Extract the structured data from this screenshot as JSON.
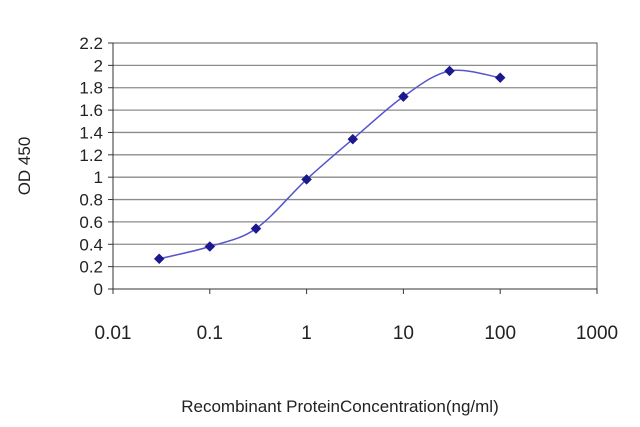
{
  "chart_data": {
    "type": "line",
    "xlabel": "Recombinant ProteinConcentration(ng/ml)",
    "ylabel": "OD 450",
    "x_scale": "log",
    "xlim": [
      0.01,
      1000
    ],
    "ylim": [
      0,
      2.2
    ],
    "x_ticks": [
      "0.01",
      "0.1",
      "1",
      "10",
      "100",
      "1000"
    ],
    "y_ticks": [
      "0",
      "0.2",
      "0.4",
      "0.6",
      "0.8",
      "1",
      "1.2",
      "1.4",
      "1.6",
      "1.8",
      "2",
      "2.2"
    ],
    "grid": "horizontal",
    "legend": "none",
    "series": [
      {
        "x": [
          0.03,
          0.1,
          0.3,
          1,
          3,
          10,
          30,
          100
        ],
        "y": [
          0.27,
          0.38,
          0.54,
          0.98,
          1.34,
          1.72,
          1.95,
          1.89
        ]
      }
    ],
    "colors": {
      "line": "#5555cc",
      "marker": "#1a1a8c",
      "grid": "#8c8c8c",
      "plot_background": "#ffffff"
    }
  }
}
